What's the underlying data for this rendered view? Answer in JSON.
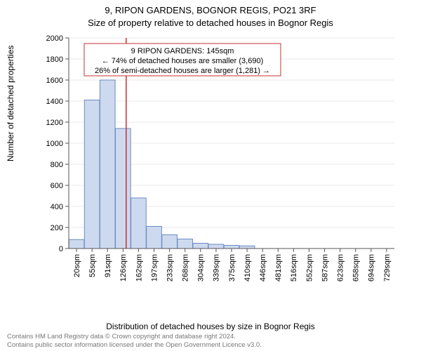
{
  "title": {
    "line1": "9, RIPON GARDENS, BOGNOR REGIS, PO21 3RF",
    "line2": "Size of property relative to detached houses in Bognor Regis"
  },
  "axes": {
    "ylabel": "Number of detached properties",
    "xlabel": "Distribution of detached houses by size in Bognor Regis",
    "ylim": [
      0,
      2000
    ],
    "ytick_step": 200,
    "background_color": "#ffffff",
    "grid_color": "#eaeaea",
    "axis_color": "#555555",
    "label_fontsize": 12,
    "tick_fontsize": 11
  },
  "histogram": {
    "type": "histogram",
    "bar_fill": "#cdd9ee",
    "bar_stroke": "#6a8bc4",
    "bar_width": 0.98,
    "categories": [
      "20sqm",
      "55sqm",
      "91sqm",
      "126sqm",
      "162sqm",
      "197sqm",
      "233sqm",
      "268sqm",
      "304sqm",
      "339sqm",
      "375sqm",
      "410sqm",
      "446sqm",
      "481sqm",
      "516sqm",
      "552sqm",
      "587sqm",
      "623sqm",
      "658sqm",
      "694sqm",
      "729sqm"
    ],
    "values": [
      85,
      1410,
      1600,
      1140,
      480,
      210,
      130,
      90,
      50,
      40,
      30,
      25,
      0,
      0,
      0,
      0,
      0,
      0,
      0,
      0,
      0
    ]
  },
  "marker": {
    "value_sqm": 145,
    "line_color": "#c43030",
    "annotation": {
      "line1": "9 RIPON GARDENS: 145sqm",
      "line2": "← 74% of detached houses are smaller (3,690)",
      "line3": "26% of semi-detached houses are larger (1,281) →",
      "box_stroke": "#c43030",
      "box_fill": "#ffffff",
      "fontsize": 11
    }
  },
  "footer": {
    "line1": "Contains HM Land Registry data © Crown copyright and database right 2024.",
    "line2": "Contains public sector information licensed under the Open Government Licence v3.0."
  }
}
